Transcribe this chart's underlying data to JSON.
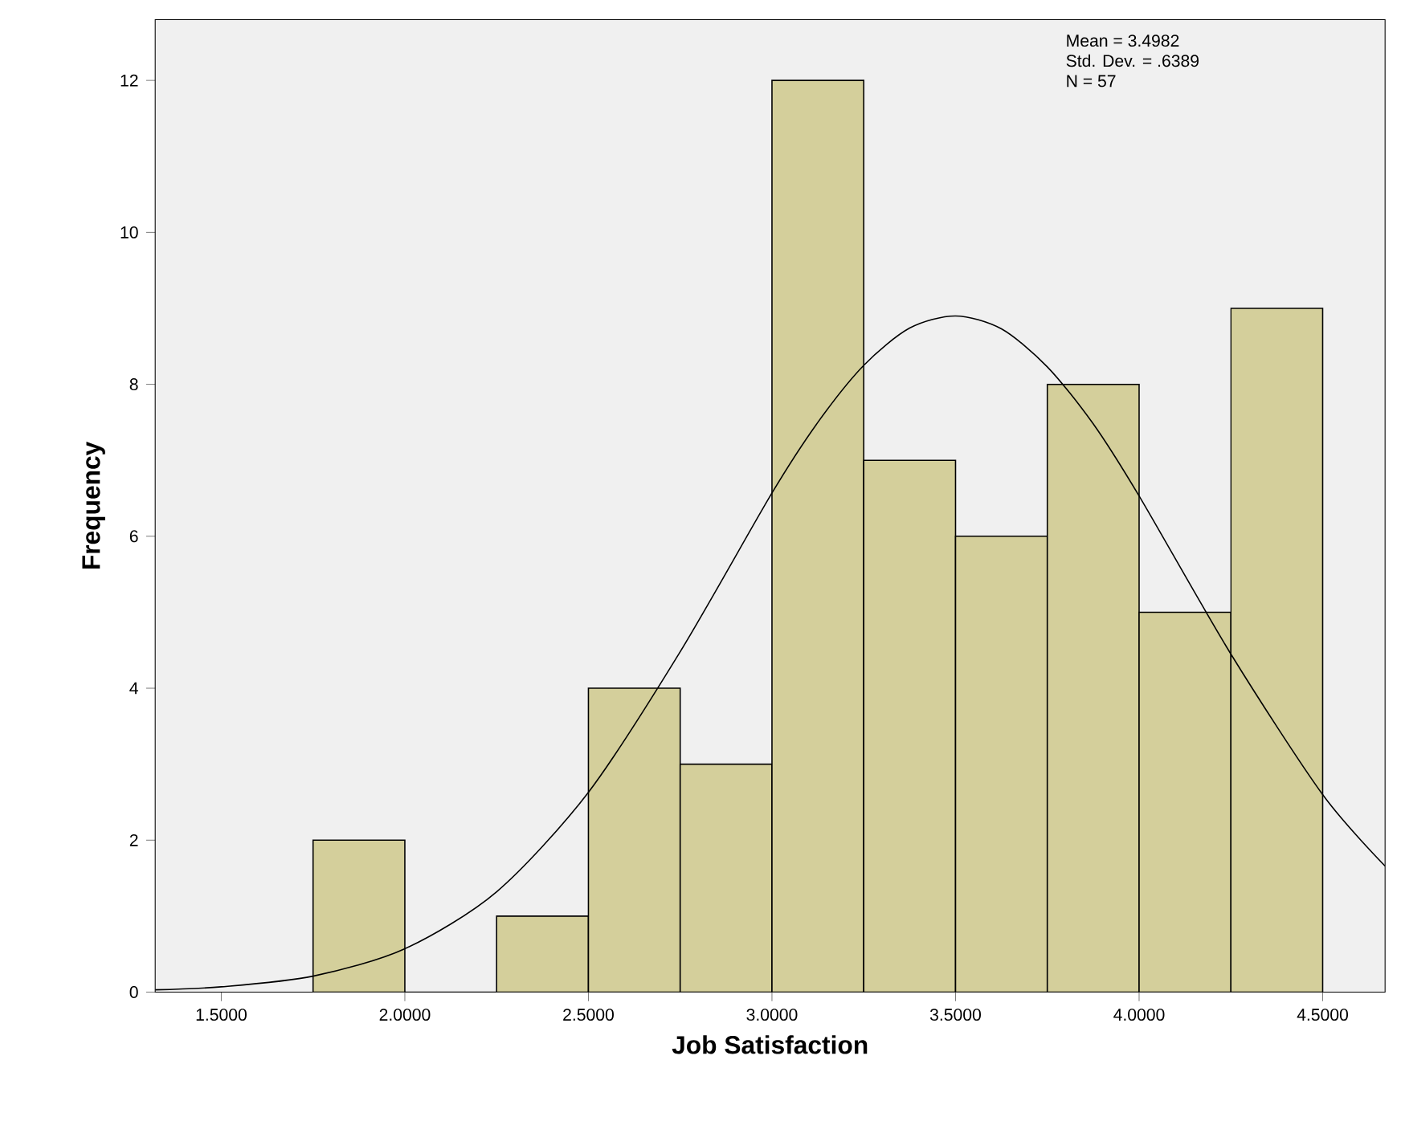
{
  "chart_data": {
    "type": "histogram",
    "xlabel": "Job Satisfaction",
    "ylabel": "Frequency",
    "bins": [
      1.75,
      2.0,
      2.25,
      2.5,
      2.75,
      3.0,
      3.25,
      3.5,
      3.75,
      4.0,
      4.25,
      4.5
    ],
    "values": [
      2,
      0,
      1,
      4,
      3,
      12,
      7,
      6,
      8,
      5,
      9
    ],
    "color": "#d4cf9b",
    "series": [
      {
        "type": "line",
        "color": "#000000",
        "x": [
          1.32,
          1.5,
          1.75,
          2.0,
          2.25,
          2.5,
          2.75,
          3.0,
          3.125,
          3.25,
          3.375,
          3.5,
          3.625,
          3.75,
          3.875,
          4.0,
          4.25,
          4.5,
          4.67
        ],
        "values": [
          0.03,
          0.07,
          0.21,
          0.57,
          1.32,
          2.63,
          4.48,
          6.57,
          7.5,
          8.25,
          8.74,
          8.9,
          8.73,
          8.23,
          7.48,
          6.53,
          4.45,
          2.6,
          1.66
        ]
      }
    ],
    "xlim": [
      1.32,
      4.67
    ],
    "ylim": [
      0,
      12.8
    ],
    "xticks": [
      {
        "value": 1.5,
        "label": "1.5000"
      },
      {
        "value": 2.0,
        "label": "2.0000"
      },
      {
        "value": 2.5,
        "label": "2.5000"
      },
      {
        "value": 3.0,
        "label": "3.0000"
      },
      {
        "value": 3.5,
        "label": "3.5000"
      },
      {
        "value": 4.0,
        "label": "4.0000"
      },
      {
        "value": 4.5,
        "label": "4.5000"
      }
    ],
    "yticks": [
      0,
      2,
      4,
      6,
      8,
      10,
      12
    ],
    "annotations": [
      "Mean = 3.4982",
      "Std. Dev. = .6389",
      "N = 57"
    ]
  }
}
